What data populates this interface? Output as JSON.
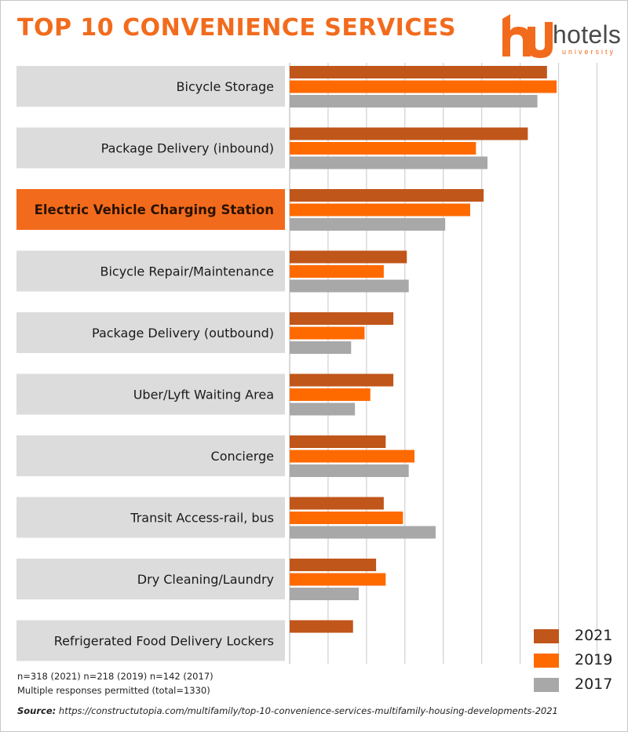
{
  "header": {
    "title": "TOP 10 CONVENIENCE SERVICES"
  },
  "logo": {
    "wordmark": "hotels",
    "subtitle": "university"
  },
  "colors": {
    "series_2021": "#c0561a",
    "series_2019": "#ff6a00",
    "series_2017": "#a8a8a8",
    "label_bg": "#dcdcdc",
    "highlight_bg": "#f26b1d",
    "accent": "#f26b1d"
  },
  "chart_data": {
    "type": "bar",
    "orientation": "horizontal",
    "title": "TOP 10 CONVENIENCE SERVICES",
    "categories": [
      "Bicycle Storage",
      "Package Delivery (inbound)",
      "Electric Vehicle Charging Station",
      "Bicycle Repair/Maintenance",
      "Package Delivery (outbound)",
      "Uber/Lyft Waiting Area",
      "Concierge",
      "Transit Access-rail, bus",
      "Dry Cleaning/Laundry",
      "Refrigerated Food Delivery Lockers"
    ],
    "highlighted_category": "Electric Vehicle Charging Station",
    "series": [
      {
        "name": "2021",
        "values": [
          67,
          62,
          50.5,
          30.5,
          27,
          27,
          25,
          24.5,
          22.5,
          16.5
        ]
      },
      {
        "name": "2019",
        "values": [
          69.5,
          48.5,
          47,
          24.5,
          19.5,
          21,
          32.5,
          29.5,
          25,
          null
        ]
      },
      {
        "name": "2017",
        "values": [
          64.5,
          51.5,
          40.5,
          31,
          16,
          17,
          31,
          38,
          18,
          null
        ]
      }
    ],
    "xlim": [
      0,
      84
    ],
    "grid": true,
    "legend_position": "bottom-right"
  },
  "legend": {
    "items": [
      "2021",
      "2019",
      "2017"
    ]
  },
  "footnotes": {
    "line1": "n=318 (2021) n=218 (2019) n=142 (2017)",
    "line2": "Multiple responses permitted (total=1330)",
    "source_prefix": "Source:",
    "source_url": "https://constructutopia.com/multifamily/top-10-convenience-services-multifamily-housing-developments-2021"
  }
}
